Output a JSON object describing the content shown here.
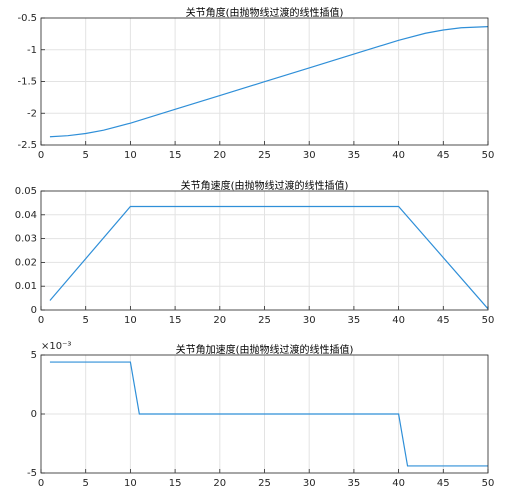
{
  "chart_data": [
    {
      "type": "line",
      "title": "关节角度(由抛物线过渡的线性插值)",
      "x": [
        1,
        3,
        5,
        7,
        10,
        15,
        20,
        25,
        30,
        35,
        40,
        43,
        45,
        47,
        50
      ],
      "values": [
        -2.37,
        -2.353,
        -2.319,
        -2.267,
        -2.156,
        -1.938,
        -1.721,
        -1.503,
        -1.286,
        -1.068,
        -0.851,
        -0.74,
        -0.689,
        -0.654,
        -0.636
      ],
      "color": "#2f8fd8",
      "xlim": [
        0,
        50
      ],
      "xticks": [
        0,
        5,
        10,
        15,
        20,
        25,
        30,
        35,
        40,
        45,
        50
      ],
      "ylim": [
        -2.5,
        -0.5
      ],
      "yticks": [
        -2.5,
        -2,
        -1.5,
        -1,
        -0.5
      ],
      "grid": true
    },
    {
      "type": "line",
      "title": "关节角速度(由抛物线过渡的线性插值)",
      "x": [
        1,
        10,
        40,
        50
      ],
      "values": [
        0.004,
        0.0435,
        0.0435,
        0.0005
      ],
      "color": "#2f8fd8",
      "xlim": [
        0,
        50
      ],
      "xticks": [
        0,
        5,
        10,
        15,
        20,
        25,
        30,
        35,
        40,
        45,
        50
      ],
      "ylim": [
        0,
        0.05
      ],
      "yticks": [
        0,
        0.01,
        0.02,
        0.03,
        0.04,
        0.05
      ],
      "grid": true
    },
    {
      "type": "line",
      "title": "关节角加速度(由抛物线过渡的线性插值)",
      "x": [
        1,
        10,
        11,
        40,
        41,
        50
      ],
      "values": [
        0.0044,
        0.0044,
        0,
        0,
        -0.0044,
        -0.0044
      ],
      "color": "#2f8fd8",
      "xlim": [
        0,
        50
      ],
      "xticks": [
        0,
        5,
        10,
        15,
        20,
        25,
        30,
        35,
        40,
        45,
        50
      ],
      "ylim": [
        -0.005,
        0.005
      ],
      "yticks": [
        {
          "value": -0.005,
          "label": "-5"
        },
        {
          "value": 0,
          "label": "0"
        },
        {
          "value": 0.005,
          "label": "5"
        }
      ],
      "y_multiplier": "×10⁻³",
      "grid": true
    }
  ]
}
